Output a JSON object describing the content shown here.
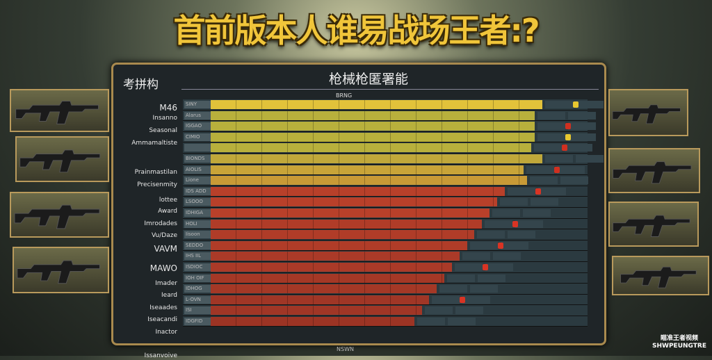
{
  "title": "首前版本人谁易战场王者:?",
  "panel": {
    "title": "枪械枪匿署能",
    "left_title": "考拼构",
    "tick_label": "BRNG",
    "footer": "NSWN"
  },
  "labels": [
    "M46",
    "Insanno",
    "Seasonal",
    "Ammamaltiste",
    "Prainmastilan",
    "Precisenmity",
    "lottee",
    "Award",
    "Imrodades",
    "Vu/Daze",
    "VAVM",
    "MAWO",
    "Imader",
    "Ieard",
    "Iseaades",
    "Iseacandi",
    "Inactor",
    "Issanvoive"
  ],
  "rows": [
    {
      "name": "SINY",
      "fill": 88,
      "color": "#e2c23a",
      "flag": "#e8c830"
    },
    {
      "name": "Alarus",
      "fill": 86,
      "color": "#b8b03c",
      "flag": ""
    },
    {
      "name": "IGGAO",
      "fill": 86,
      "color": "#b8b03c",
      "flag": "#d03020"
    },
    {
      "name": "CIMIO",
      "fill": 86,
      "color": "#b8b03c",
      "flag": "#e8c830"
    },
    {
      "name": "",
      "fill": 85,
      "color": "#b8b03c",
      "flag": "#d03020"
    },
    {
      "name": "BIONDS",
      "fill": 88,
      "color": "#c0a83a",
      "flag": ""
    },
    {
      "name": "AIOLIS",
      "fill": 83,
      "color": "#c8a438",
      "flag": "#d03020"
    },
    {
      "name": "Lione",
      "fill": 84,
      "color": "#c89a36",
      "flag": ""
    },
    {
      "name": "IDS ADD",
      "fill": 78,
      "color": "#b8402a",
      "flag": "#d83424"
    },
    {
      "name": "LSOOO",
      "fill": 76,
      "color": "#b8402a",
      "flag": ""
    },
    {
      "name": "IDHIGA",
      "fill": 74,
      "color": "#b8402a",
      "flag": ""
    },
    {
      "name": "HOLI",
      "fill": 72,
      "color": "#b03c28",
      "flag": "#d83424"
    },
    {
      "name": "Iisoon",
      "fill": 70,
      "color": "#b03c28",
      "flag": ""
    },
    {
      "name": "SEDDO",
      "fill": 68,
      "color": "#b03c28",
      "flag": "#d83424"
    },
    {
      "name": "IHS IIL",
      "fill": 66,
      "color": "#aa3a28",
      "flag": ""
    },
    {
      "name": "ISDIOC",
      "fill": 64,
      "color": "#aa3a28",
      "flag": "#d83424"
    },
    {
      "name": "IOH OIF",
      "fill": 62,
      "color": "#a43826",
      "flag": ""
    },
    {
      "name": "IDHOG",
      "fill": 60,
      "color": "#a43826",
      "flag": ""
    },
    {
      "name": "L-OVN",
      "fill": 58,
      "color": "#a03626",
      "flag": "#d83424"
    },
    {
      "name": "ISI",
      "fill": 56,
      "color": "#a03626",
      "flag": ""
    },
    {
      "name": "IDGFID",
      "fill": 54,
      "color": "#9c3424",
      "flag": ""
    }
  ],
  "brand": {
    "line1": "瞄准王者视频",
    "line2": "SHWPEUNGTRE"
  },
  "weapons_left": [
    "rifle-icon",
    "carbine-icon",
    "assault-rifle-icon",
    "rifle-icon"
  ],
  "weapons_right": [
    "rifle-icon",
    "assault-rifle-icon",
    "carbine-icon",
    "sniper-rifle-icon"
  ]
}
